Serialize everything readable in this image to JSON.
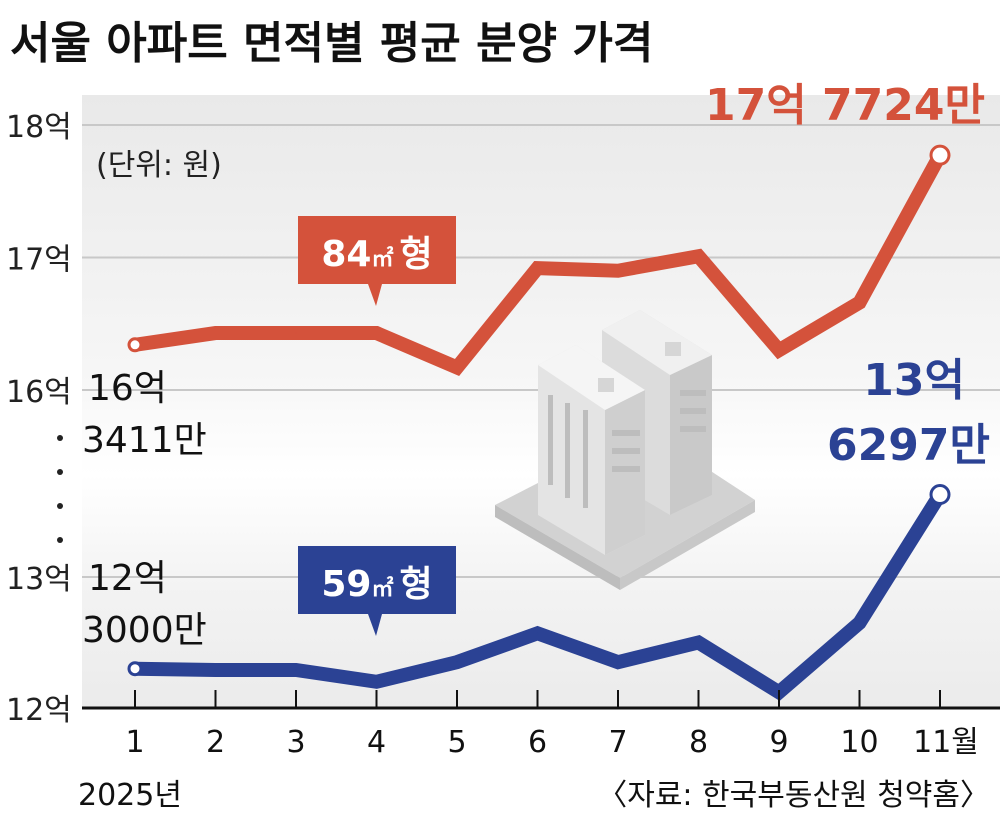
{
  "chart_data": {
    "type": "line",
    "title": "서울 아파트 면적별 평균 분양 가격",
    "unit_note": "(단위: 원)",
    "source": "〈자료: 한국부동산원 청약홈〉",
    "year_label": "2025년",
    "x_tick_labels": [
      "1",
      "2",
      "3",
      "4",
      "5",
      "6",
      "7",
      "8",
      "9",
      "10",
      "11월"
    ],
    "x": [
      1,
      2,
      3,
      4,
      5,
      6,
      7,
      8,
      9,
      10,
      11
    ],
    "y_unit": "억원",
    "upper_axis": {
      "ticks": [
        "18억",
        "17억",
        "16억"
      ],
      "tick_values": [
        18,
        17,
        16
      ],
      "ylim": [
        16,
        18
      ]
    },
    "lower_axis": {
      "ticks": [
        "13억",
        "12억"
      ],
      "tick_values": [
        13,
        12
      ],
      "ylim": [
        12,
        13
      ]
    },
    "axis_break": true,
    "grid": true,
    "series": [
      {
        "name": "84㎡형",
        "label_main": "84",
        "label_unit": "㎡",
        "label_suffix": "형",
        "color": "#d4523b",
        "axis": "upper",
        "values": [
          16.3411,
          16.43,
          16.43,
          16.43,
          16.17,
          16.92,
          16.9,
          17.01,
          16.3,
          16.66,
          17.7724
        ],
        "start_label": [
          "16억",
          "3411만"
        ],
        "end_label": [
          "17억 7724만"
        ]
      },
      {
        "name": "59㎡형",
        "label_main": "59",
        "label_unit": "㎡",
        "label_suffix": "형",
        "color": "#2b4294",
        "axis": "lower",
        "values": [
          12.3,
          12.29,
          12.29,
          12.2,
          12.35,
          12.57,
          12.35,
          12.5,
          12.12,
          12.65,
          13.6297
        ],
        "start_label": [
          "12억",
          "3000만"
        ],
        "end_label": [
          "13억",
          "6297만"
        ]
      }
    ]
  }
}
